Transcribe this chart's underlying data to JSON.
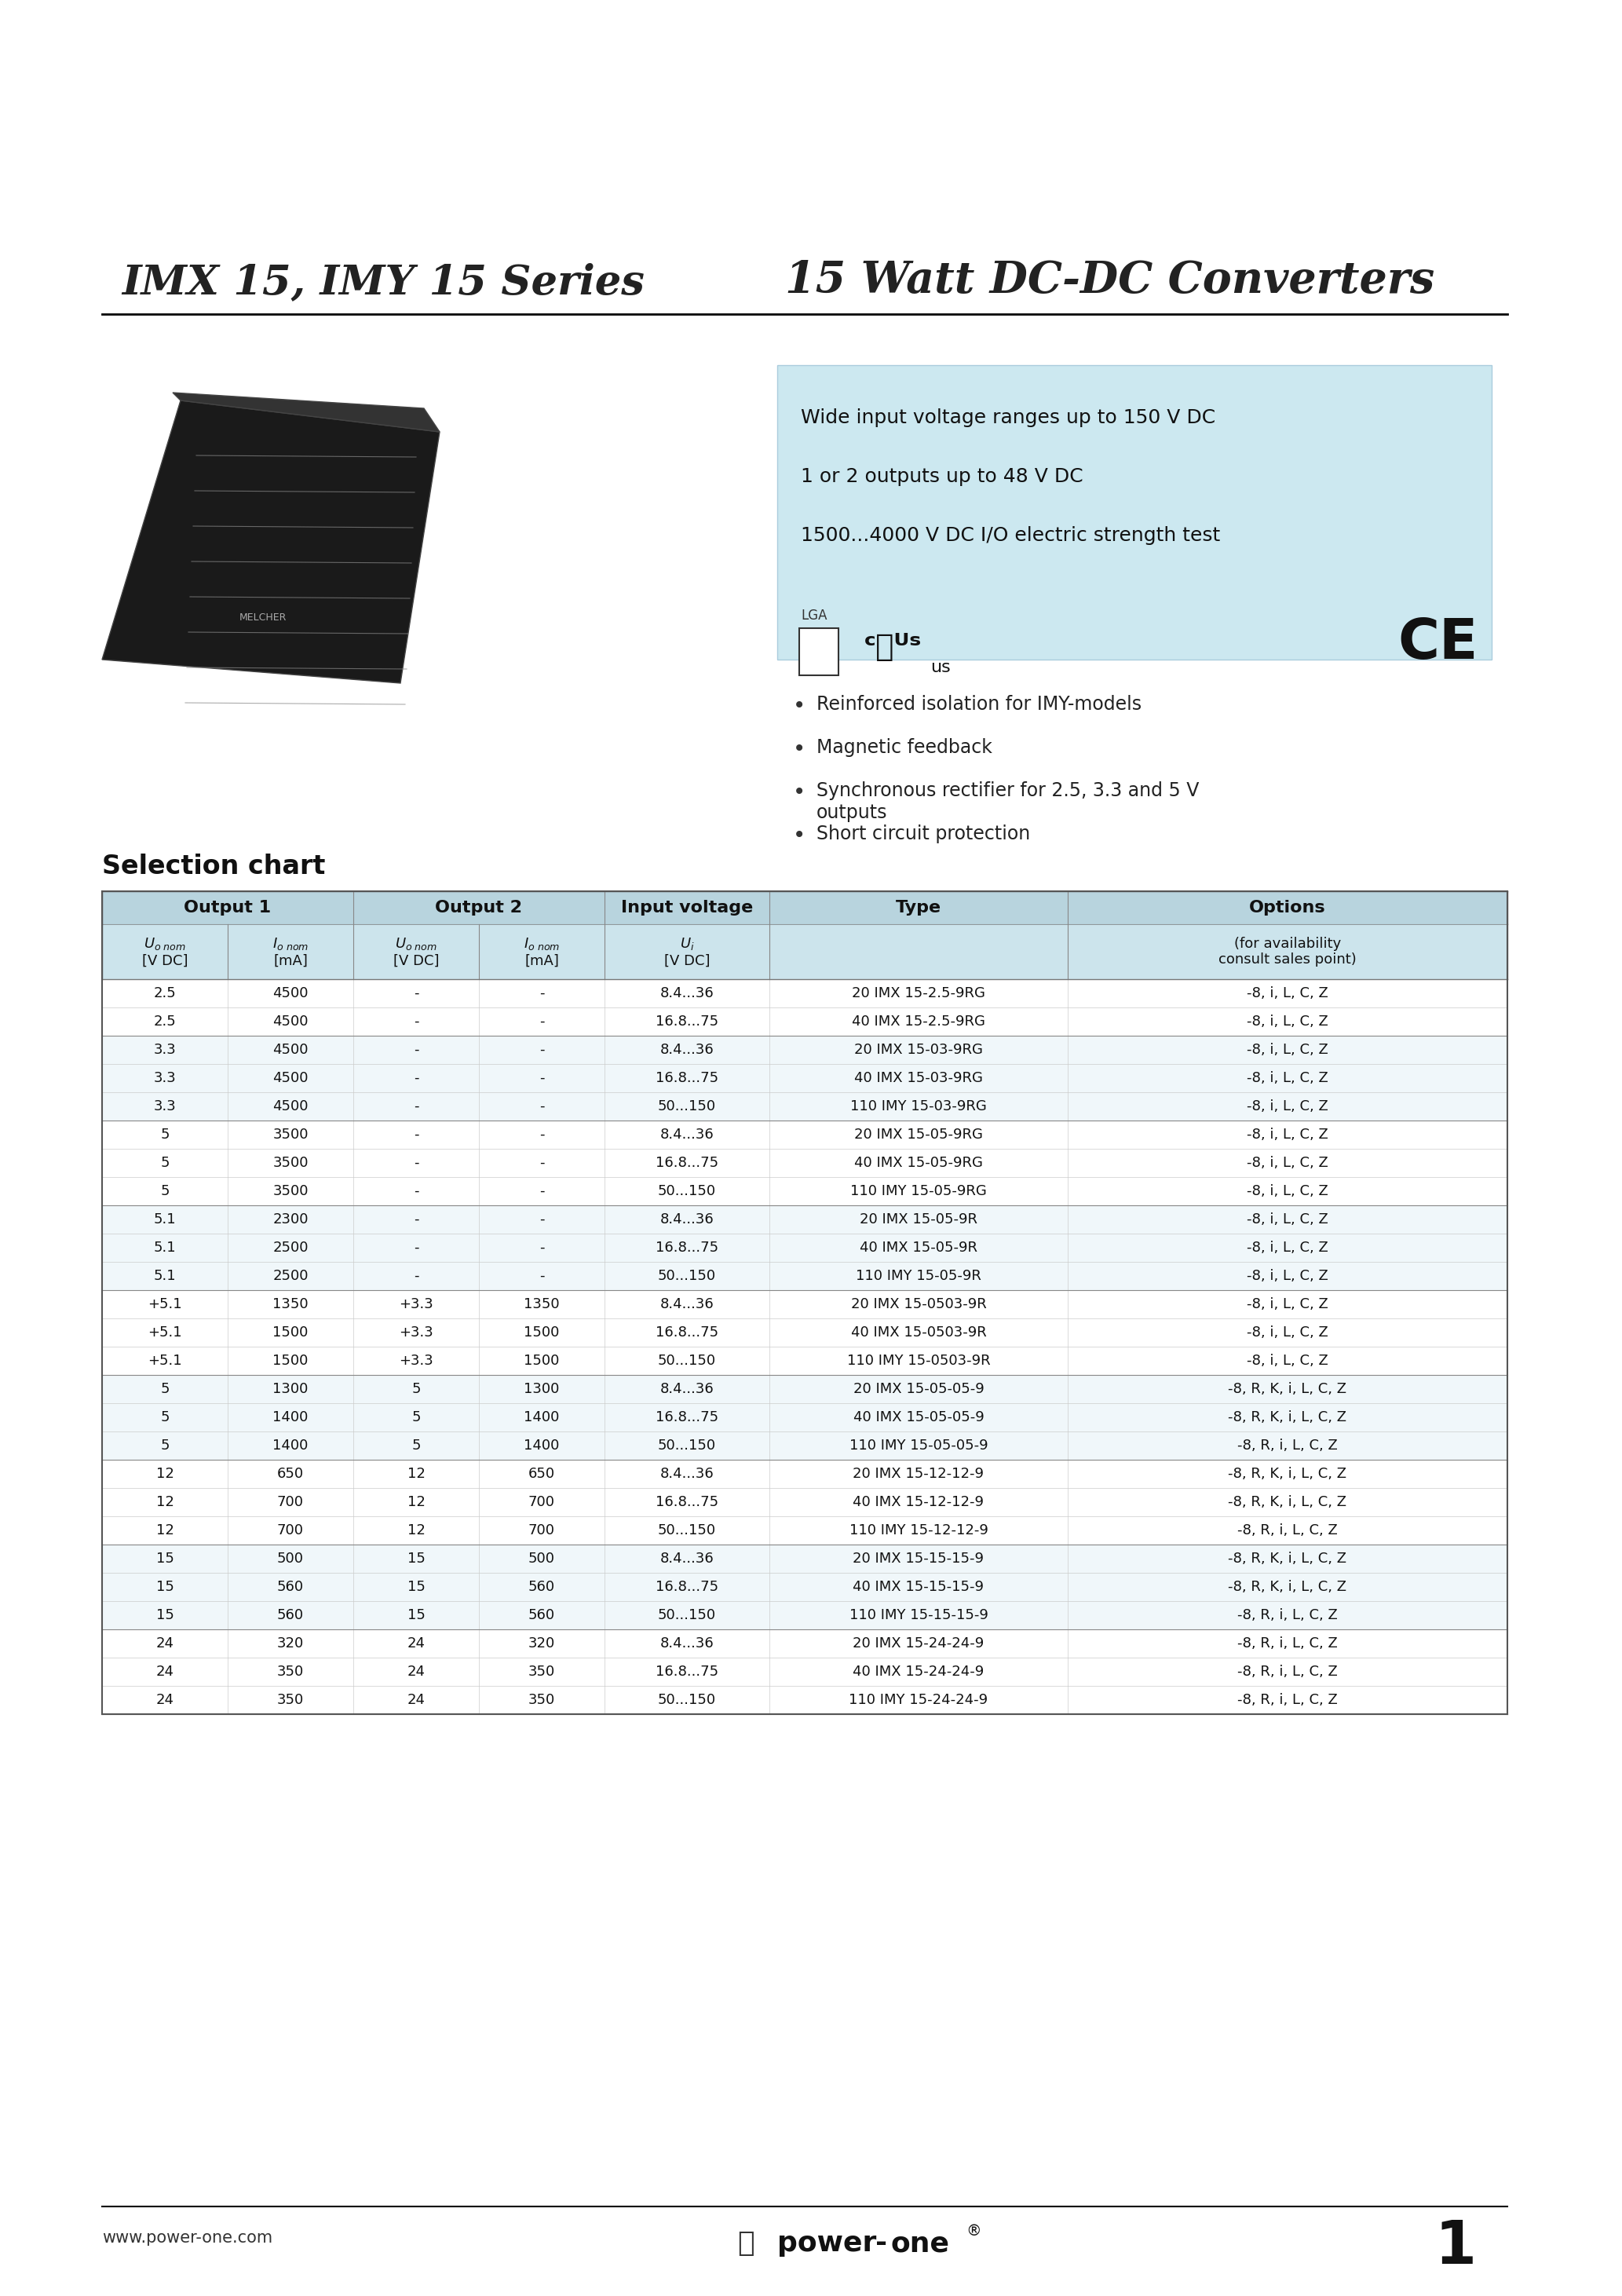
{
  "page_bg": "#ffffff",
  "title_left": "IMX 15, IMY 15 Series",
  "title_right": "15 Watt DC-DC Converters",
  "feature_box_color": "#cce8f0",
  "feature_box_lines": [
    "Wide input voltage ranges up to 150 V DC",
    "1 or 2 outputs up to 48 V DC",
    "1500...4000 V DC I/O electric strength test"
  ],
  "bullet_points": [
    "Reinforced isolation for IMY-models",
    "Magnetic feedback",
    "Synchronous rectifier for 2.5, 3.3 and 5 V\noutputs",
    "Short circuit protection"
  ],
  "selection_chart_title": "Selection chart",
  "table_data": [
    [
      "2.5",
      "4500",
      "-",
      "-",
      "8.4...36",
      "20 IMX 15-2.5-9RG",
      "-8, i, L, C, Z"
    ],
    [
      "2.5",
      "4500",
      "-",
      "-",
      "16.8...75",
      "40 IMX 15-2.5-9RG",
      "-8, i, L, C, Z"
    ],
    [
      "3.3",
      "4500",
      "-",
      "-",
      "8.4...36",
      "20 IMX 15-03-9RG",
      "-8, i, L, C, Z"
    ],
    [
      "3.3",
      "4500",
      "-",
      "-",
      "16.8...75",
      "40 IMX 15-03-9RG",
      "-8, i, L, C, Z"
    ],
    [
      "3.3",
      "4500",
      "-",
      "-",
      "50...150",
      "110 IMY 15-03-9RG",
      "-8, i, L, C, Z"
    ],
    [
      "5",
      "3500",
      "-",
      "-",
      "8.4...36",
      "20 IMX 15-05-9RG",
      "-8, i, L, C, Z"
    ],
    [
      "5",
      "3500",
      "-",
      "-",
      "16.8...75",
      "40 IMX 15-05-9RG",
      "-8, i, L, C, Z"
    ],
    [
      "5",
      "3500",
      "-",
      "-",
      "50...150",
      "110 IMY 15-05-9RG",
      "-8, i, L, C, Z"
    ],
    [
      "5.1",
      "2300",
      "-",
      "-",
      "8.4...36",
      "20 IMX 15-05-9R",
      "-8, i, L, C, Z"
    ],
    [
      "5.1",
      "2500",
      "-",
      "-",
      "16.8...75",
      "40 IMX 15-05-9R",
      "-8, i, L, C, Z"
    ],
    [
      "5.1",
      "2500",
      "-",
      "-",
      "50...150",
      "110 IMY 15-05-9R",
      "-8, i, L, C, Z"
    ],
    [
      "+5.1",
      "1350",
      "+3.3",
      "1350",
      "8.4...36",
      "20 IMX 15-0503-9R",
      "-8, i, L, C, Z"
    ],
    [
      "+5.1",
      "1500",
      "+3.3",
      "1500",
      "16.8...75",
      "40 IMX 15-0503-9R",
      "-8, i, L, C, Z"
    ],
    [
      "+5.1",
      "1500",
      "+3.3",
      "1500",
      "50...150",
      "110 IMY 15-0503-9R",
      "-8, i, L, C, Z"
    ],
    [
      "5",
      "1300",
      "5",
      "1300",
      "8.4...36",
      "20 IMX 15-05-05-9",
      "-8, R, K, i, L, C, Z"
    ],
    [
      "5",
      "1400",
      "5",
      "1400",
      "16.8...75",
      "40 IMX 15-05-05-9",
      "-8, R, K, i, L, C, Z"
    ],
    [
      "5",
      "1400",
      "5",
      "1400",
      "50...150",
      "110 IMY 15-05-05-9",
      "-8, R, i, L, C, Z"
    ],
    [
      "12",
      "650",
      "12",
      "650",
      "8.4...36",
      "20 IMX 15-12-12-9",
      "-8, R, K, i, L, C, Z"
    ],
    [
      "12",
      "700",
      "12",
      "700",
      "16.8...75",
      "40 IMX 15-12-12-9",
      "-8, R, K, i, L, C, Z"
    ],
    [
      "12",
      "700",
      "12",
      "700",
      "50...150",
      "110 IMY 15-12-12-9",
      "-8, R, i, L, C, Z"
    ],
    [
      "15",
      "500",
      "15",
      "500",
      "8.4...36",
      "20 IMX 15-15-15-9",
      "-8, R, K, i, L, C, Z"
    ],
    [
      "15",
      "560",
      "15",
      "560",
      "16.8...75",
      "40 IMX 15-15-15-9",
      "-8, R, K, i, L, C, Z"
    ],
    [
      "15",
      "560",
      "15",
      "560",
      "50...150",
      "110 IMY 15-15-15-9",
      "-8, R, i, L, C, Z"
    ],
    [
      "24",
      "320",
      "24",
      "320",
      "8.4...36",
      "20 IMX 15-24-24-9",
      "-8, R, i, L, C, Z"
    ],
    [
      "24",
      "350",
      "24",
      "350",
      "16.8...75",
      "40 IMX 15-24-24-9",
      "-8, R, i, L, C, Z"
    ],
    [
      "24",
      "350",
      "24",
      "350",
      "50...150",
      "110 IMY 15-24-24-9",
      "-8, R, i, L, C, Z"
    ]
  ],
  "group_sizes": [
    2,
    3,
    3,
    3,
    3,
    3,
    3,
    3,
    3
  ],
  "footer_url": "www.power-one.com",
  "footer_page": "1"
}
